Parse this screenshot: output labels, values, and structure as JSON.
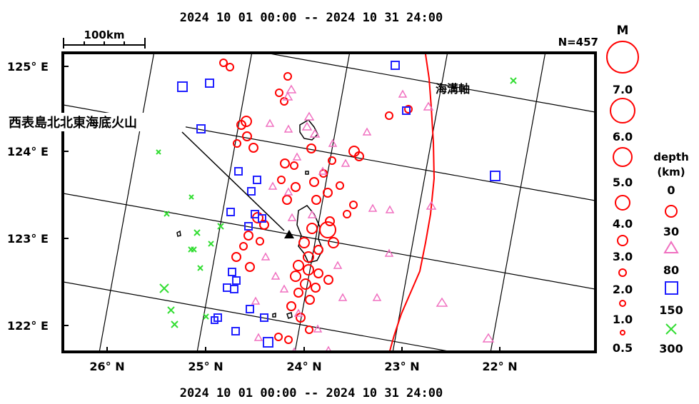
{
  "header": {
    "period_top": "2024  10  01  00:00  --  2024  10  31  24:00"
  },
  "footer": {
    "period_bottom": "2024  10  01  00:00  --  2024  10  31  24:00"
  },
  "map": {
    "count_label": "N=457",
    "scale_label": "100km",
    "trench_label": "海溝軸",
    "volcano_label": "西表島北北東海底火山",
    "left_axis": [
      "125° E",
      "124° E",
      "123° E",
      "122° E"
    ],
    "bottom_axis": [
      "26° N",
      "25° N",
      "24° N",
      "23° N",
      "22° N"
    ]
  },
  "legend": {
    "magnitude_title": "M",
    "magnitudes": [
      "7.0",
      "6.0",
      "5.0",
      "4.0",
      "3.0",
      "2.0",
      "1.0",
      "0.5"
    ],
    "depth_title_1": "depth",
    "depth_title_2": "(km)",
    "depths": [
      "0",
      "30",
      "80",
      "150",
      "300"
    ]
  },
  "colors": {
    "shallow": "#ff0000",
    "mid": "#f070c0",
    "deep": "#2020ff",
    "verydeep": "#33dd33",
    "trench": "#ff0000"
  }
}
